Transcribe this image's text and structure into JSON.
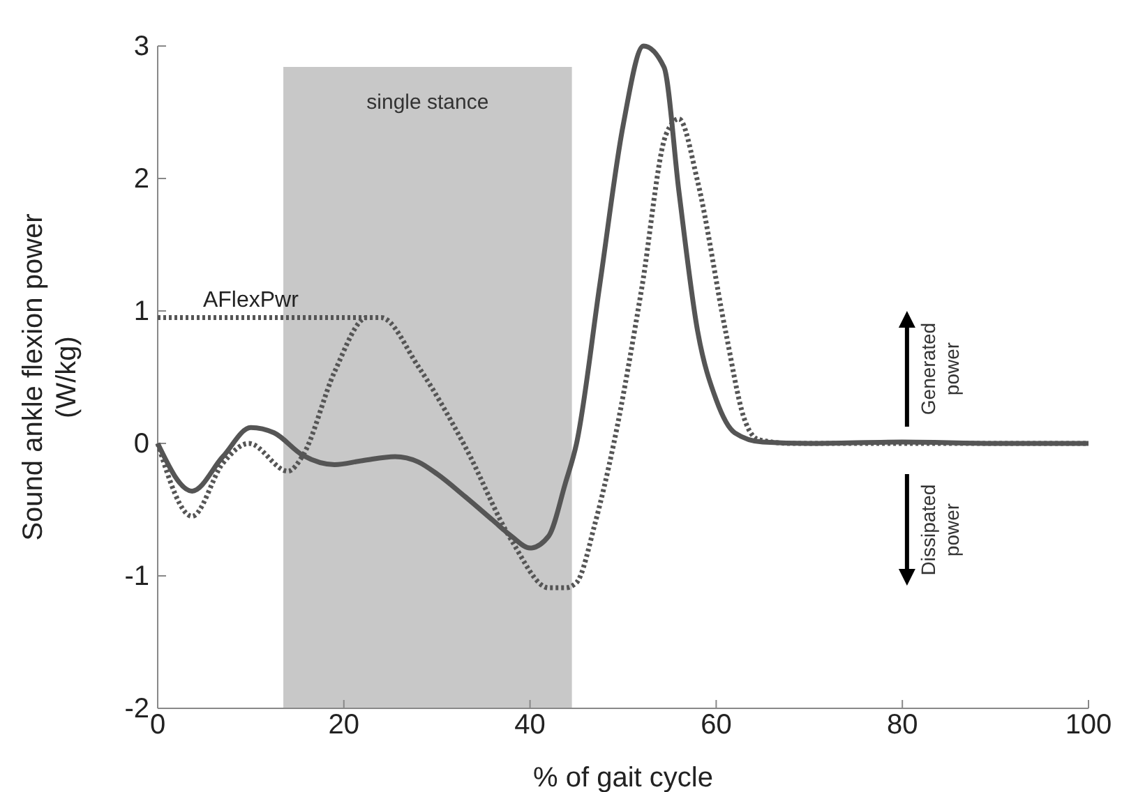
{
  "chart_data": {
    "type": "line",
    "xlabel": "% of gait cycle",
    "ylabel": "Sound ankle flexion power\n(W/kg)",
    "xlim": [
      0,
      100
    ],
    "ylim": [
      -2,
      3
    ],
    "xticks": [
      0,
      20,
      40,
      60,
      80,
      100
    ],
    "yticks": [
      -2,
      -1,
      0,
      1,
      2,
      3
    ],
    "marker": "none",
    "bands": [
      {
        "axis": "x",
        "from": 13.5,
        "to": 44.5,
        "label": "single stance",
        "color": "#c8c8c8"
      }
    ],
    "annotations": [
      {
        "text": "AFlexPwr",
        "x": 10,
        "y": 0.95
      },
      "Generated power",
      "Dissipated power"
    ],
    "series": [
      {
        "color": "#555555",
        "line_style": "solid",
        "x": [
          0,
          3.7,
          7,
          10,
          12.5,
          15.6,
          19,
          22,
          25.5,
          28,
          30,
          33,
          36,
          38,
          40,
          42,
          43.8,
          45,
          47.5,
          50,
          52.2,
          54.4,
          56,
          58,
          60,
          62,
          65,
          70,
          80,
          90,
          100
        ],
        "values": [
          0,
          -0.36,
          -0.1,
          0.12,
          0.08,
          -0.09,
          -0.16,
          -0.13,
          -0.1,
          -0.14,
          -0.23,
          -0.4,
          -0.58,
          -0.7,
          -0.79,
          -0.7,
          -0.3,
          0,
          1.2,
          2.4,
          3.0,
          2.84,
          1.9,
          0.85,
          0.33,
          0.08,
          0.01,
          0,
          0.01,
          0,
          0
        ]
      },
      {
        "color": "#555555",
        "line_style": "dotted",
        "x": [
          0,
          3.7,
          7,
          9.8,
          14,
          15.6,
          19,
          22.5,
          24,
          28,
          33,
          38,
          42,
          43.8,
          45,
          47,
          49,
          52,
          54.6,
          56,
          58,
          61,
          63,
          64.5,
          68,
          80,
          100
        ],
        "values": [
          0,
          -0.55,
          -0.15,
          0,
          -0.21,
          -0.09,
          0.54,
          0.95,
          0.95,
          0.58,
          -0.02,
          -0.73,
          -1.09,
          -1.09,
          -1.05,
          -0.6,
          0,
          1.17,
          2.33,
          2.45,
          1.98,
          0.85,
          0.19,
          0.03,
          0,
          0,
          0
        ]
      },
      {
        "color": "#555555",
        "line_style": "dotted",
        "x": [
          0,
          23
        ],
        "values": [
          0.95,
          0.95
        ]
      }
    ]
  }
}
